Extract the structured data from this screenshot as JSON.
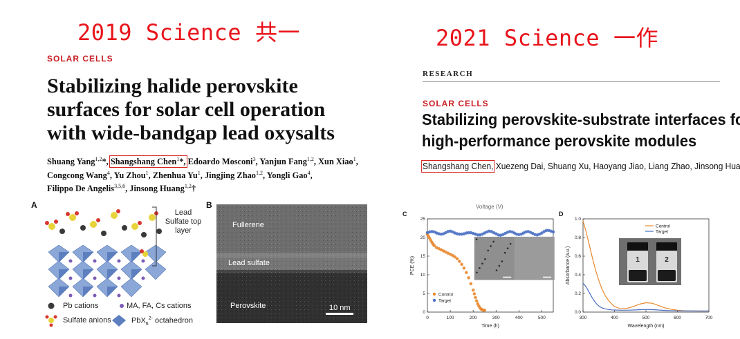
{
  "left_paper": {
    "header": "2019 Science 共一",
    "section": "SOLAR CELLS",
    "title_lines": [
      "Stabilizing halide perovskite",
      "surfaces for solar cell operation",
      "with wide-bandgap lead oxysalts"
    ],
    "authors": {
      "a1": "Shuang Yang",
      "a1_sup": "1,2",
      "highlight": "Shangshang Chen",
      "highlight_sup": "1",
      "a3": "Edoardo Mosconi",
      "a3_sup": "3",
      "a4": "Yanjun Fang",
      "a4_sup": "1,2",
      "a5": "Xun Xiao",
      "a5_sup": "1",
      "a6": "Congcong Wang",
      "a6_sup": "4",
      "a7": "Yu Zhou",
      "a7_sup": "1",
      "a8": "Zhenhua Yu",
      "a8_sup": "1",
      "a9": "Jingjing Zhao",
      "a9_sup": "1,2",
      "a10": "Yongli Gao",
      "a10_sup": "4",
      "a11": "Filippo De Angelis",
      "a11_sup": "3,5,6",
      "a12": "Jinsong Huang",
      "a12_sup": "1,2"
    },
    "figure": {
      "panel_a": "A",
      "panel_b": "B",
      "lead_sulfate_label": "Lead Sulfate top layer",
      "legend": {
        "pb": "Pb cations",
        "ma": "MA, FA, Cs cations",
        "sulfate": "Sulfate anions",
        "pbx6": "PbX",
        "pbx6_sub": "6",
        "pbx6_sup": "2-",
        "pbx6_rest": " octahedron"
      },
      "tem": {
        "fullerene": "Fullerene",
        "lead_sulfate": "Lead sulfate",
        "perovskite": "Perovskite",
        "scale": "10 nm"
      }
    }
  },
  "right_paper": {
    "header": "2021 Science 一作",
    "journal_section": "RESEARCH",
    "section": "SOLAR CELLS",
    "title_lines": [
      "Stabilizing perovskite-substrate interfaces for",
      "high-performance perovskite modules"
    ],
    "authors_highlight": "Shangshang Chen,",
    "authors_rest": " Xuezeng Dai, Shuang Xu, Haoyang Jiao, Liang Zhao, Jinsong Huang",
    "figure": {
      "panel_c": "C",
      "panel_d": "D",
      "cropped_top_label": "Voltage (V)",
      "vial_labels": [
        "1",
        "2"
      ]
    }
  },
  "chart_data": [
    {
      "type": "scatter",
      "title": "",
      "xlabel": "Time (h)",
      "ylabel": "PCE (%)",
      "xlim": [
        0,
        550
      ],
      "ylim": [
        0,
        25
      ],
      "xticks": [
        0,
        100,
        200,
        300,
        400,
        500
      ],
      "yticks": [
        0,
        5,
        10,
        15,
        20,
        25
      ],
      "legend_position": "bottom-left",
      "series": [
        {
          "name": "Control",
          "color": "#e8882c",
          "x": [
            0,
            5,
            10,
            15,
            20,
            25,
            30,
            40,
            50,
            60,
            70,
            80,
            90,
            100,
            110,
            120,
            130,
            140,
            150,
            160,
            170,
            180,
            190,
            200,
            205,
            210,
            215,
            220,
            225,
            230,
            235,
            240,
            245,
            250
          ],
          "y": [
            20.8,
            20.3,
            19.8,
            19.2,
            18.7,
            18.2,
            17.8,
            17.3,
            17.0,
            16.7,
            16.4,
            16.1,
            15.8,
            15.5,
            15.2,
            14.8,
            14.3,
            13.6,
            12.8,
            11.8,
            10.6,
            9.2,
            7.6,
            5.9,
            4.9,
            3.9,
            3.0,
            2.2,
            1.6,
            1.1,
            0.8,
            0.6,
            0.5,
            0.5
          ]
        },
        {
          "name": "Target",
          "color": "#4a6fc4",
          "x": [
            0,
            10,
            20,
            30,
            40,
            50,
            60,
            70,
            80,
            90,
            100,
            110,
            120,
            130,
            140,
            150,
            160,
            170,
            180,
            190,
            200,
            210,
            220,
            230,
            240,
            250,
            260,
            270,
            280,
            290,
            300,
            310,
            320,
            330,
            340,
            350,
            360,
            370,
            380,
            390,
            400,
            410,
            420,
            430,
            440,
            450,
            460,
            470,
            480,
            490,
            500,
            510,
            520,
            530,
            540,
            550
          ],
          "y": [
            21.3,
            21.5,
            21.6,
            21.5,
            21.2,
            21.0,
            20.9,
            21.0,
            21.3,
            21.6,
            21.7,
            21.5,
            21.2,
            21.0,
            20.9,
            20.9,
            21.0,
            21.2,
            21.3,
            21.3,
            21.1,
            20.9,
            20.7,
            20.7,
            20.9,
            21.2,
            21.5,
            21.7,
            21.6,
            21.3,
            21.0,
            20.7,
            20.6,
            20.8,
            21.1,
            21.4,
            21.6,
            21.5,
            21.2,
            20.9,
            20.8,
            20.9,
            21.2,
            21.5,
            21.6,
            21.4,
            21.1,
            20.8,
            20.7,
            20.9,
            21.2,
            21.6,
            21.9,
            21.9,
            21.7,
            21.5
          ]
        }
      ],
      "inset_scale_bars": 2
    },
    {
      "type": "line",
      "title": "",
      "xlabel": "Wavelength (nm)",
      "ylabel": "Absorbance (a.u.)",
      "xlim": [
        300,
        700
      ],
      "ylim": [
        0,
        1.0
      ],
      "xticks": [
        300,
        400,
        500,
        600,
        700
      ],
      "yticks": [
        0.0,
        0.2,
        0.4,
        0.6,
        0.8,
        1.0
      ],
      "legend_position": "top-right",
      "series": [
        {
          "name": "Control",
          "color": "#e8882c",
          "x": [
            300,
            310,
            320,
            330,
            340,
            350,
            360,
            370,
            380,
            390,
            400,
            420,
            440,
            460,
            480,
            500,
            520,
            540,
            560,
            580,
            600,
            620,
            650,
            700
          ],
          "y": [
            0.98,
            0.86,
            0.72,
            0.58,
            0.45,
            0.34,
            0.25,
            0.18,
            0.13,
            0.09,
            0.06,
            0.035,
            0.04,
            0.06,
            0.085,
            0.1,
            0.095,
            0.07,
            0.045,
            0.03,
            0.02,
            0.015,
            0.012,
            0.01
          ]
        },
        {
          "name": "Target",
          "color": "#4a6fc4",
          "x": [
            300,
            310,
            320,
            330,
            340,
            350,
            360,
            370,
            380,
            390,
            400,
            420,
            440,
            460,
            480,
            500,
            520,
            540,
            560,
            580,
            600,
            650,
            700
          ],
          "y": [
            0.31,
            0.27,
            0.21,
            0.15,
            0.1,
            0.065,
            0.045,
            0.035,
            0.028,
            0.024,
            0.022,
            0.02,
            0.02,
            0.022,
            0.025,
            0.028,
            0.026,
            0.022,
            0.018,
            0.015,
            0.013,
            0.012,
            0.012
          ]
        }
      ],
      "inset": "photo of two vials labeled 1 and 2"
    }
  ]
}
